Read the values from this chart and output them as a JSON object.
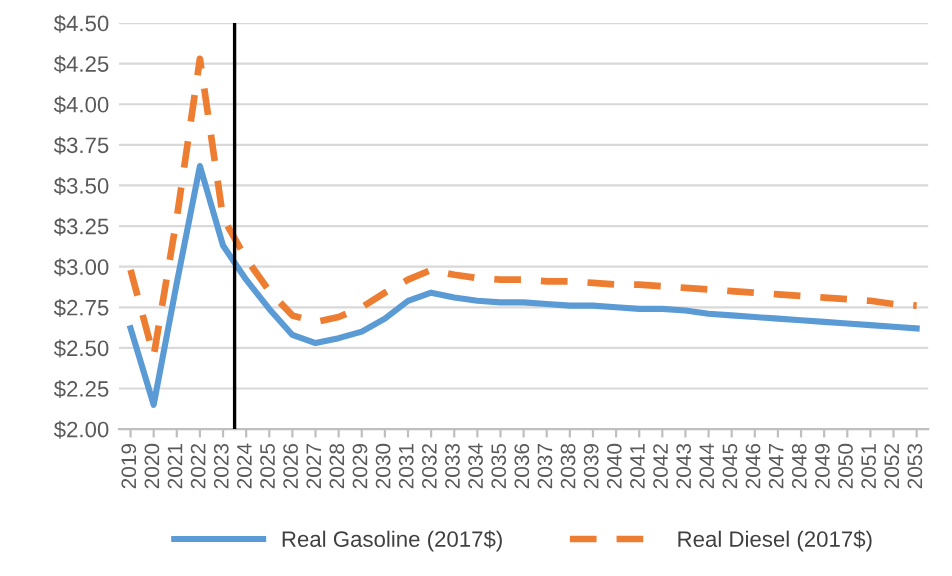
{
  "chart_data": {
    "type": "line",
    "x": [
      2019,
      2020,
      2021,
      2022,
      2023,
      2024,
      2025,
      2026,
      2027,
      2028,
      2029,
      2030,
      2031,
      2032,
      2033,
      2034,
      2035,
      2036,
      2037,
      2038,
      2039,
      2040,
      2041,
      2042,
      2043,
      2044,
      2045,
      2046,
      2047,
      2048,
      2049,
      2050,
      2051,
      2052,
      2053
    ],
    "series": [
      {
        "name": "Real Gasoline (2017$)",
        "color": "#5b9bd5",
        "line_style": "solid",
        "values": [
          2.62,
          2.15,
          2.9,
          3.62,
          3.13,
          2.92,
          2.74,
          2.58,
          2.53,
          2.56,
          2.6,
          2.68,
          2.79,
          2.84,
          2.81,
          2.79,
          2.78,
          2.78,
          2.77,
          2.76,
          2.76,
          2.75,
          2.74,
          2.74,
          2.73,
          2.71,
          2.7,
          2.69,
          2.68,
          2.67,
          2.66,
          2.65,
          2.64,
          2.63,
          2.62
        ]
      },
      {
        "name": "Real Diesel (2017$)",
        "color": "#ed7d31",
        "line_style": "dashed",
        "values": [
          2.98,
          2.45,
          3.3,
          4.28,
          3.3,
          3.05,
          2.85,
          2.7,
          2.66,
          2.69,
          2.75,
          2.84,
          2.92,
          2.98,
          2.95,
          2.93,
          2.92,
          2.92,
          2.91,
          2.91,
          2.9,
          2.89,
          2.89,
          2.88,
          2.87,
          2.86,
          2.85,
          2.84,
          2.83,
          2.82,
          2.81,
          2.8,
          2.79,
          2.77,
          2.76
        ]
      }
    ],
    "xlim": [
      2018.5,
      2053.5
    ],
    "xticks": [
      2019,
      2020,
      2021,
      2022,
      2023,
      2024,
      2025,
      2026,
      2027,
      2028,
      2029,
      2030,
      2031,
      2032,
      2033,
      2034,
      2035,
      2036,
      2037,
      2038,
      2039,
      2040,
      2041,
      2042,
      2043,
      2044,
      2045,
      2046,
      2047,
      2048,
      2049,
      2050,
      2051,
      2052,
      2053
    ],
    "ylim": [
      2.0,
      4.5
    ],
    "yticks": [
      {
        "value": 2.0,
        "label": "$2.00"
      },
      {
        "value": 2.25,
        "label": "$2.25"
      },
      {
        "value": 2.5,
        "label": "$2.50"
      },
      {
        "value": 2.75,
        "label": "$2.75"
      },
      {
        "value": 3.0,
        "label": "$3.00"
      },
      {
        "value": 3.25,
        "label": "$3.25"
      },
      {
        "value": 3.5,
        "label": "$3.50"
      },
      {
        "value": 3.75,
        "label": "$3.75"
      },
      {
        "value": 4.0,
        "label": "$4.00"
      },
      {
        "value": 4.25,
        "label": "$4.25"
      },
      {
        "value": 4.5,
        "label": "$4.50"
      }
    ],
    "ref_lines": [
      {
        "axis": "x",
        "value": 2023.5,
        "color": "#000000",
        "line_style": "solid"
      }
    ],
    "grid": "y",
    "legend": "bottom",
    "marker": "none"
  }
}
